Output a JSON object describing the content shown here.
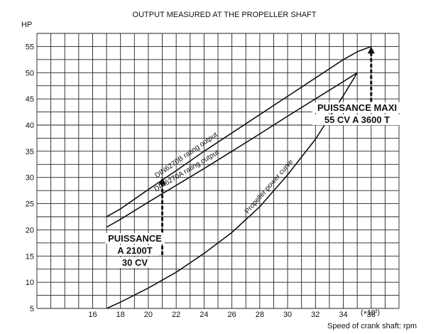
{
  "chart_data": {
    "type": "line",
    "title": "OUTPUT MEASURED AT THE PROPELLER SHAFT",
    "ylabel": "HP",
    "xlabel": "Speed of crank shaft: rpm",
    "x_unit_label": "(×10²)",
    "xlim": [
      12,
      38
    ],
    "ylim": [
      5,
      57.5
    ],
    "x_ticks": [
      16,
      18,
      20,
      22,
      24,
      26,
      28,
      30,
      32,
      34,
      36
    ],
    "y_ticks": [
      5,
      10,
      15,
      20,
      25,
      30,
      35,
      40,
      45,
      50,
      55
    ],
    "grid": true,
    "series": [
      {
        "name": "DIN6270B rating output",
        "x": [
          17,
          18,
          20,
          22,
          24,
          26,
          28,
          30,
          32,
          34,
          35,
          36
        ],
        "y": [
          22.5,
          24,
          27.7,
          31.3,
          35,
          38.5,
          42,
          45.5,
          49,
          52.5,
          54,
          55
        ]
      },
      {
        "name": "DIN6270A rating output",
        "x": [
          17,
          18,
          20,
          22,
          24,
          26,
          28,
          30,
          32,
          34,
          35
        ],
        "y": [
          20.5,
          22,
          25.3,
          28.5,
          31.7,
          35,
          38.3,
          41.7,
          45,
          48.3,
          50
        ]
      },
      {
        "name": "Propeller power curve",
        "x": [
          17,
          18,
          20,
          22,
          24,
          26,
          28,
          30,
          32,
          34,
          35
        ],
        "y": [
          5,
          6.2,
          8.9,
          11.9,
          15.5,
          19.5,
          24.4,
          30.5,
          37.3,
          45.6,
          50
        ]
      }
    ],
    "annotations": [
      {
        "lines": [
          "PUISSANCE",
          "A 2100T",
          "30 CV"
        ],
        "x": 21,
        "y": 30
      },
      {
        "lines": [
          "PUISSANCE MAXI",
          "55 CV A 3600 T"
        ],
        "x": 36,
        "y": 55
      }
    ]
  }
}
